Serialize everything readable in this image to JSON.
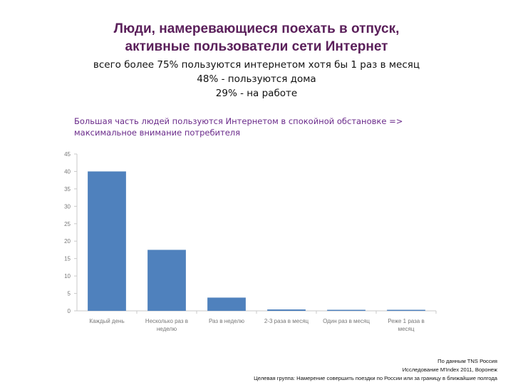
{
  "header": {
    "title_line1": "Люди, намеревающиеся поехать в отпуск,",
    "title_line2": "активные пользователи сети Интернет"
  },
  "stats": {
    "line1": "всего более 75% пользуются интернетом хотя бы 1 раз в месяц",
    "line2": "48% - пользуются дома",
    "line3": "29% - на работе"
  },
  "note": {
    "line1": "Большая часть людей пользуются Интернетом в спокойной обстановке =>",
    "line2": "максимальное внимание потребителя"
  },
  "chart_data": {
    "type": "bar",
    "categories": [
      [
        "Каждый день"
      ],
      [
        "Несколько раз в",
        "неделю"
      ],
      [
        "Раз в неделю"
      ],
      [
        "2-3 раза в месяц"
      ],
      [
        "Один раз в месяц"
      ],
      [
        "Реже 1 раза в",
        "месяц"
      ]
    ],
    "values": [
      40,
      17.5,
      3.8,
      0.4,
      0.3,
      0.3
    ],
    "ylim": [
      0,
      45
    ],
    "yticks": [
      0,
      5,
      10,
      15,
      20,
      25,
      30,
      35,
      40,
      45
    ],
    "ytick_labels": [
      "0",
      "5",
      "10",
      "15",
      "20",
      "25",
      "30",
      "35",
      "40",
      "45"
    ],
    "grid": false,
    "bar_color": "#4f81bd"
  },
  "footer": {
    "line1": "По данным TNS Россия",
    "line2": "Исследование M'Index 2011, Воронеж",
    "line3": "Целевая группа: Намерение совершить поездки по России или за границу в ближайшие полгода"
  }
}
